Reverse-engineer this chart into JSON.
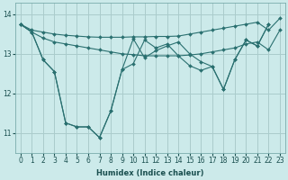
{
  "xlabel": "Humidex (Indice chaleur)",
  "ylabel": "",
  "xlim": [
    -0.5,
    23.5
  ],
  "ylim": [
    10.5,
    14.3
  ],
  "yticks": [
    11,
    12,
    13,
    14
  ],
  "xticks": [
    0,
    1,
    2,
    3,
    4,
    5,
    6,
    7,
    8,
    9,
    10,
    11,
    12,
    13,
    14,
    15,
    16,
    17,
    18,
    19,
    20,
    21,
    22,
    23
  ],
  "background_color": "#cceaea",
  "grid_color": "#aacccc",
  "line_color": "#2a7070",
  "lines": [
    [
      13.75,
      13.6,
      13.55,
      13.5,
      13.47,
      13.45,
      13.43,
      13.42,
      13.42,
      13.42,
      13.43,
      13.43,
      13.44,
      13.44,
      13.45,
      13.5,
      13.55,
      13.6,
      13.65,
      13.7,
      13.75,
      13.8,
      13.6,
      13.9
    ],
    [
      13.75,
      13.55,
      13.4,
      13.3,
      13.25,
      13.2,
      13.15,
      13.1,
      13.05,
      13.0,
      12.98,
      12.95,
      12.95,
      12.95,
      12.95,
      12.97,
      13.0,
      13.05,
      13.1,
      13.15,
      13.25,
      13.3,
      13.1,
      13.6
    ],
    [
      13.75,
      13.55,
      12.85,
      12.55,
      11.25,
      11.15,
      11.15,
      10.88,
      11.55,
      12.6,
      12.75,
      13.35,
      13.15,
      13.25,
      12.95,
      12.7,
      12.58,
      12.68,
      12.1,
      12.85,
      13.35,
      13.2,
      13.75,
      null
    ],
    [
      13.75,
      13.55,
      12.85,
      12.55,
      11.25,
      11.15,
      11.15,
      10.88,
      11.55,
      12.6,
      13.38,
      12.9,
      13.08,
      13.2,
      13.3,
      13.0,
      12.8,
      12.68,
      12.1,
      12.85,
      13.35,
      13.2,
      13.75,
      null
    ]
  ]
}
